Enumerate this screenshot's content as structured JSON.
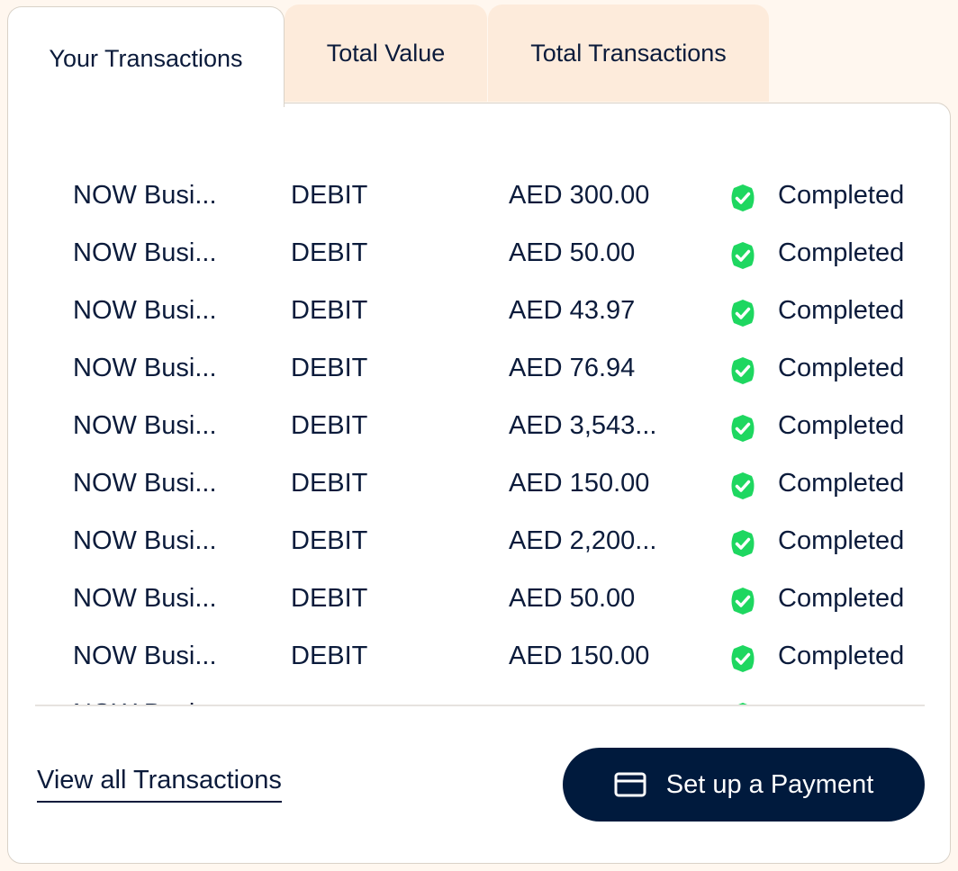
{
  "tabs": [
    {
      "label": "Your Transactions",
      "active": true
    },
    {
      "label": "Total Value"
    },
    {
      "label": "Total Transactions"
    }
  ],
  "colors": {
    "accent": "#001a3d",
    "success": "#1ed760",
    "tab_inactive": "#fdebdb"
  },
  "transactions": [
    {
      "name": "NOW Busi...",
      "type": "DEBIT",
      "amount": "AED 300.00",
      "status": "Completed",
      "status_icon": "check-circle-icon"
    },
    {
      "name": "NOW Busi...",
      "type": "DEBIT",
      "amount": "AED 50.00",
      "status": "Completed",
      "status_icon": "check-circle-icon"
    },
    {
      "name": "NOW Busi...",
      "type": "DEBIT",
      "amount": "AED 43.97",
      "status": "Completed",
      "status_icon": "check-circle-icon"
    },
    {
      "name": "NOW Busi...",
      "type": "DEBIT",
      "amount": "AED 76.94",
      "status": "Completed",
      "status_icon": "check-circle-icon"
    },
    {
      "name": "NOW Busi...",
      "type": "DEBIT",
      "amount": "AED 3,543...",
      "status": "Completed",
      "status_icon": "check-circle-icon"
    },
    {
      "name": "NOW Busi...",
      "type": "DEBIT",
      "amount": "AED 150.00",
      "status": "Completed",
      "status_icon": "check-circle-icon"
    },
    {
      "name": "NOW Busi...",
      "type": "DEBIT",
      "amount": "AED 2,200...",
      "status": "Completed",
      "status_icon": "check-circle-icon"
    },
    {
      "name": "NOW Busi...",
      "type": "DEBIT",
      "amount": "AED 50.00",
      "status": "Completed",
      "status_icon": "check-circle-icon"
    },
    {
      "name": "NOW Busi...",
      "type": "DEBIT",
      "amount": "AED 150.00",
      "status": "Completed",
      "status_icon": "check-circle-icon"
    },
    {
      "name": "NOW Busi...",
      "type": "",
      "amount": "",
      "status": "",
      "status_icon": "check-circle-icon"
    }
  ],
  "footer": {
    "view_all_label": "View all Transactions",
    "payment_button_label": "Set up a Payment",
    "payment_icon": "card-icon"
  }
}
